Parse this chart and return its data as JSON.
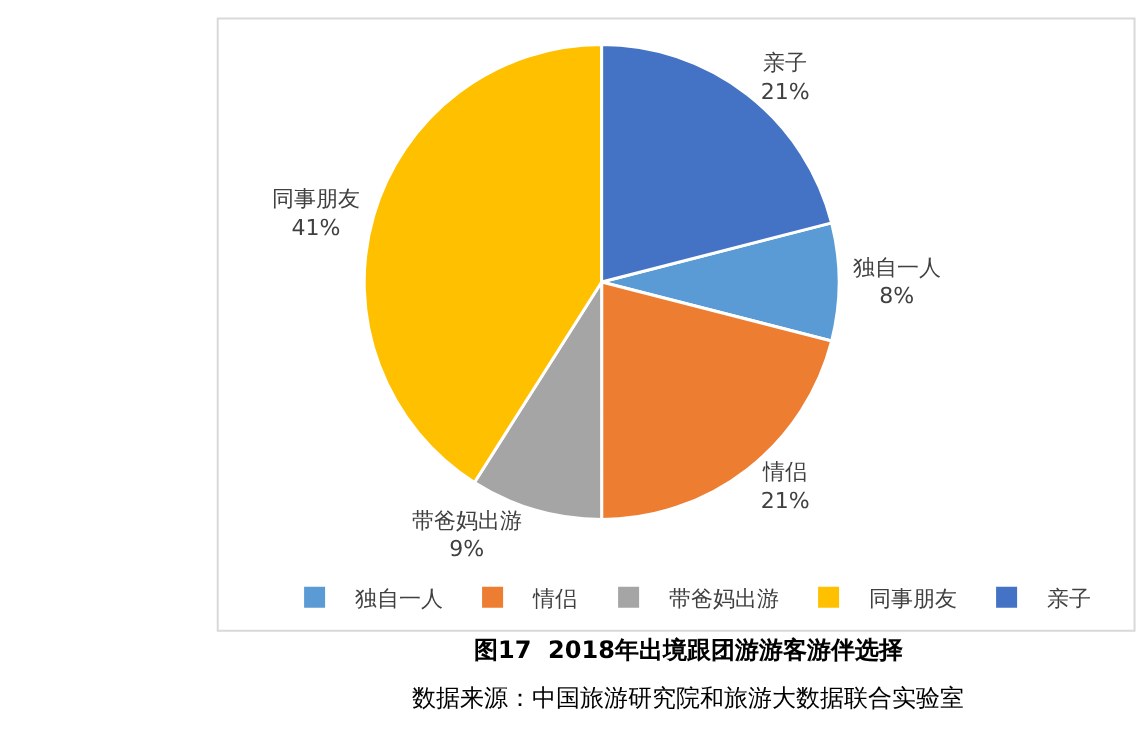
{
  "chart_data": {
    "type": "pie",
    "title": "图17  2018年出境跟团游游客游伴选择",
    "categories": [
      "独自一人",
      "情侣",
      "带爸妈出游",
      "同事朋友",
      "亲子"
    ],
    "values": [
      8,
      21,
      9,
      41,
      21
    ],
    "value_labels": [
      "8%",
      "21%",
      "9%",
      "41%",
      "21%"
    ],
    "colors": [
      "#5b9bd5",
      "#ed7d31",
      "#a5a5a5",
      "#ffc000",
      "#4472c4"
    ],
    "legend": "bottom",
    "annotations": [
      "数据来源：中国旅游研究院和旅游大数据联合实验室"
    ]
  }
}
